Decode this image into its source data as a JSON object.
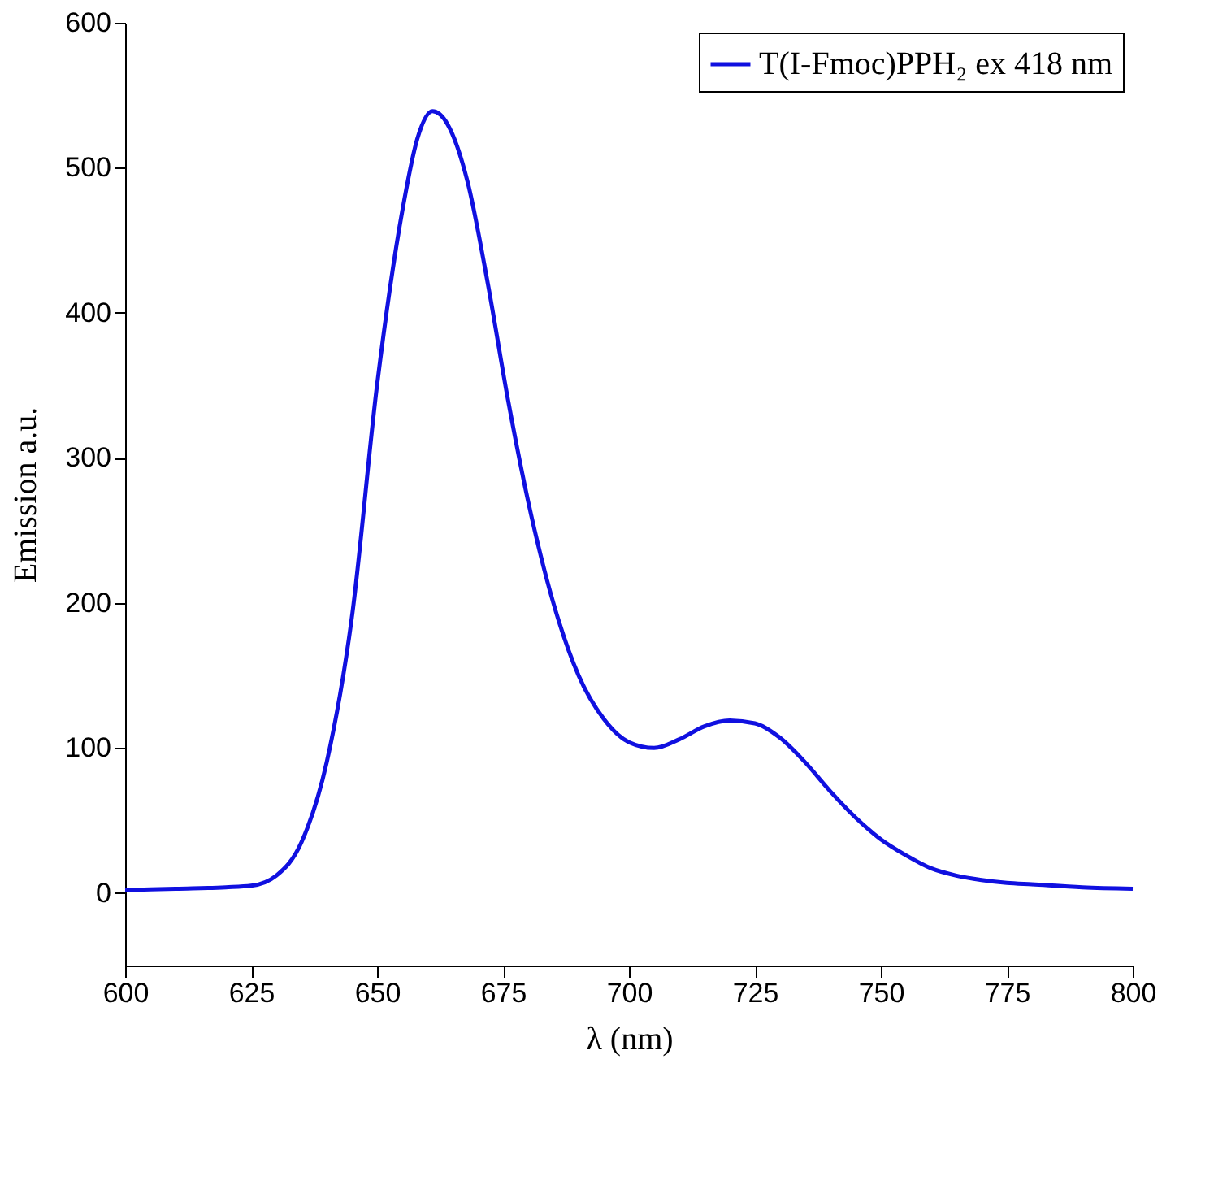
{
  "chart_data": {
    "type": "line",
    "xlabel": "λ (nm)",
    "ylabel": "Emission a.u.",
    "x": [
      600,
      610,
      620,
      625,
      630,
      635,
      640,
      645,
      650,
      655,
      658,
      661,
      664,
      668,
      672,
      676,
      680,
      685,
      690,
      695,
      700,
      705,
      710,
      715,
      720,
      725,
      730,
      735,
      740,
      745,
      750,
      755,
      760,
      765,
      770,
      775,
      780,
      790,
      800
    ],
    "series": [
      {
        "name": "T(I-Fmoc)PPH₂ ex 418 nm",
        "color": "#1010e0",
        "values": [
          2,
          3,
          4,
          5,
          12,
          35,
          90,
          190,
          350,
          470,
          520,
          539,
          530,
          490,
          420,
          340,
          270,
          200,
          150,
          120,
          104,
          100,
          106,
          115,
          119,
          117,
          107,
          90,
          70,
          52,
          37,
          26,
          17,
          12,
          9,
          7,
          6,
          4,
          3
        ]
      }
    ],
    "xlim": [
      600,
      800
    ],
    "ylim": [
      -50,
      600
    ],
    "xticks": [
      600,
      625,
      650,
      675,
      700,
      725,
      750,
      775,
      800
    ],
    "yticks": [
      0,
      100,
      200,
      300,
      400,
      500,
      600
    ],
    "grid": false,
    "legend": "top right",
    "line_style": "solid",
    "marker": "none"
  }
}
